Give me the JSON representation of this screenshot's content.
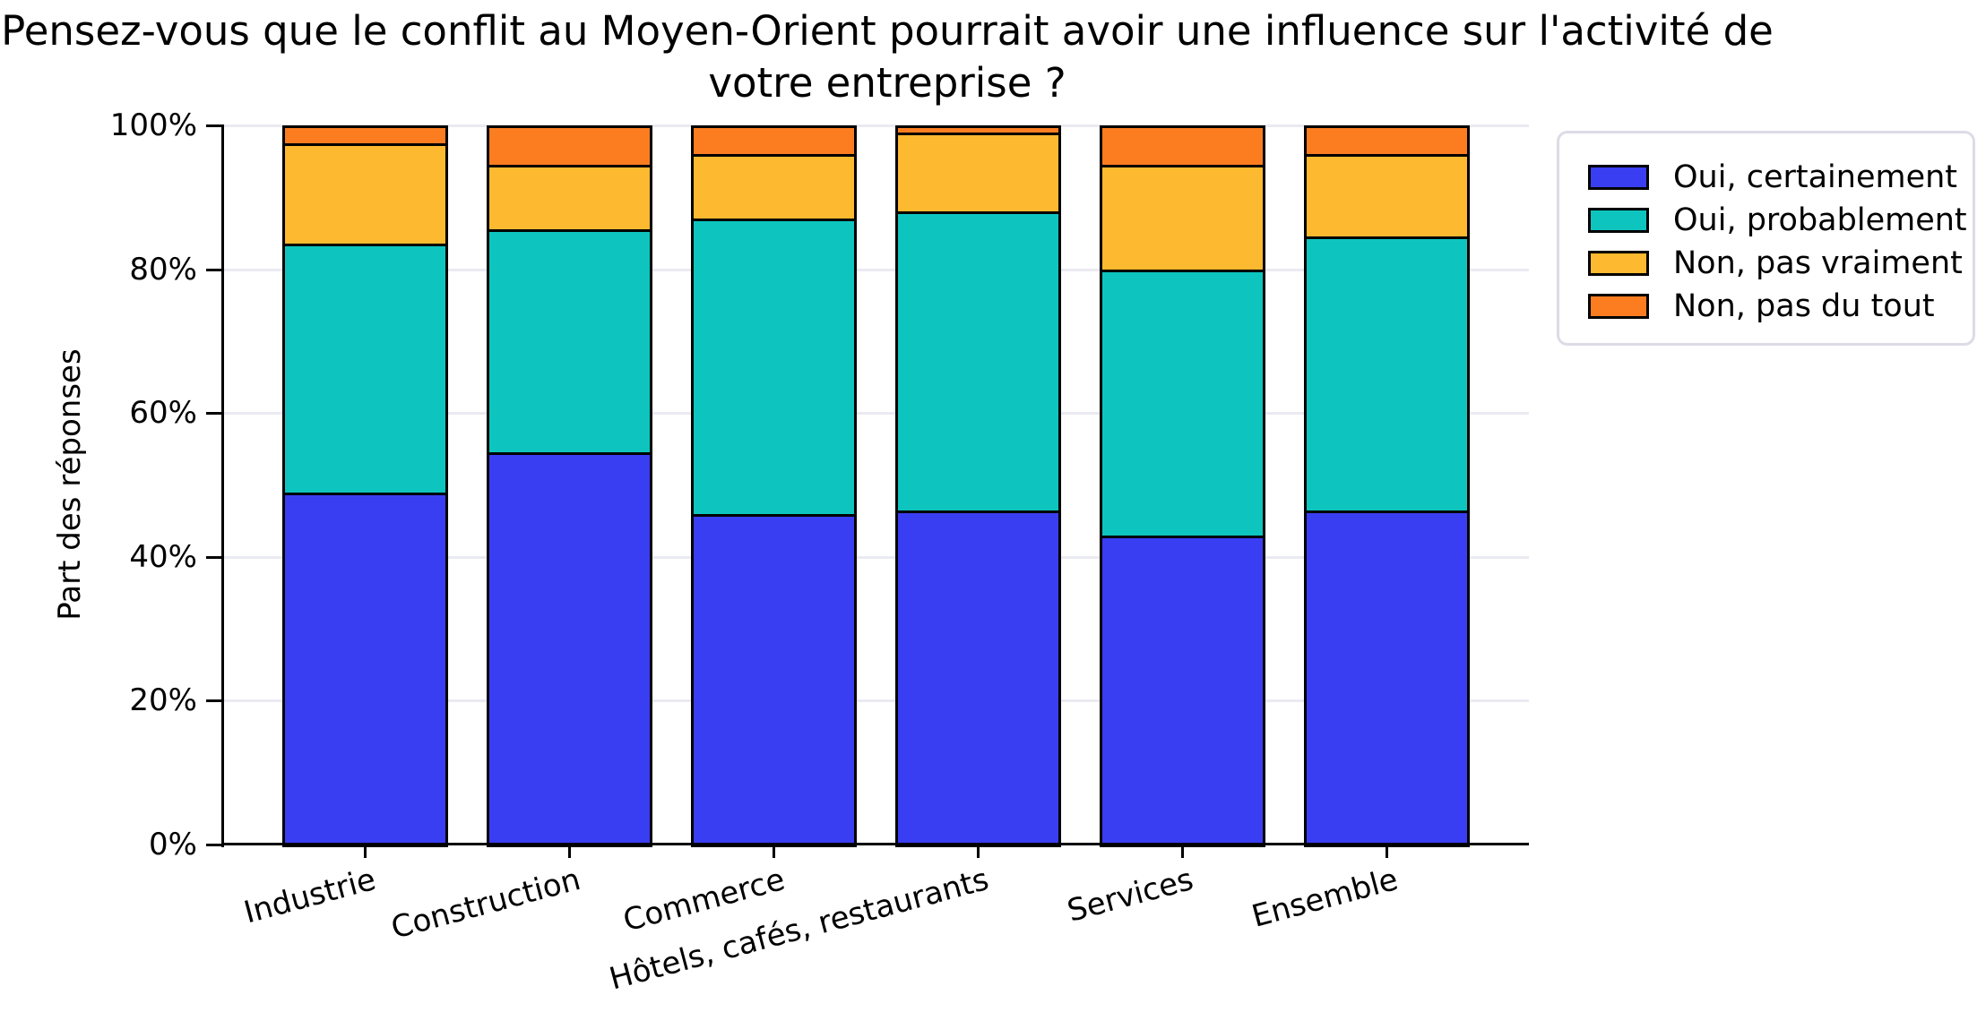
{
  "title": {
    "line1": "Pensez-vous que le conflit au Moyen-Orient pourrait avoir une influence sur l'activité de",
    "line2": "votre entreprise ?"
  },
  "y_axis": {
    "label": "Part des réponses",
    "ticks": [
      "0%",
      "20%",
      "40%",
      "60%",
      "80%",
      "100%"
    ],
    "tick_values": [
      0,
      20,
      40,
      60,
      80,
      100
    ]
  },
  "chart_data": {
    "type": "bar",
    "stacked": true,
    "orientation": "vertical",
    "title": "Pensez-vous que le conflit au Moyen-Orient pourrait avoir une influence sur l'activité de votre entreprise ?",
    "xlabel": "",
    "ylabel": "Part des réponses",
    "ylim": [
      0,
      100
    ],
    "ytick_format": "percent",
    "grid": true,
    "legend_position": "upper right, outside plot",
    "categories": [
      "Industrie",
      "Construction",
      "Commerce",
      "Hôtels, cafés, restaurants",
      "Services",
      "Ensemble"
    ],
    "series": [
      {
        "name": "Oui, certainement",
        "color": "#3A3EF2",
        "values": [
          49.0,
          54.5,
          46.0,
          46.5,
          43.0,
          46.5
        ]
      },
      {
        "name": "Oui, probablement",
        "color": "#0DC5BE",
        "values": [
          34.5,
          31.0,
          41.0,
          41.5,
          37.0,
          38.0
        ]
      },
      {
        "name": "Non, pas vraiment",
        "color": "#FDB92F",
        "values": [
          14.0,
          9.0,
          9.0,
          11.0,
          14.5,
          11.5
        ]
      },
      {
        "name": "Non, pas du tout",
        "color": "#FB7D20",
        "values": [
          2.5,
          5.5,
          4.0,
          1.0,
          5.5,
          4.0
        ]
      }
    ],
    "bar_edge_color": "#000000",
    "gridline_color": "#eaeaf2"
  }
}
